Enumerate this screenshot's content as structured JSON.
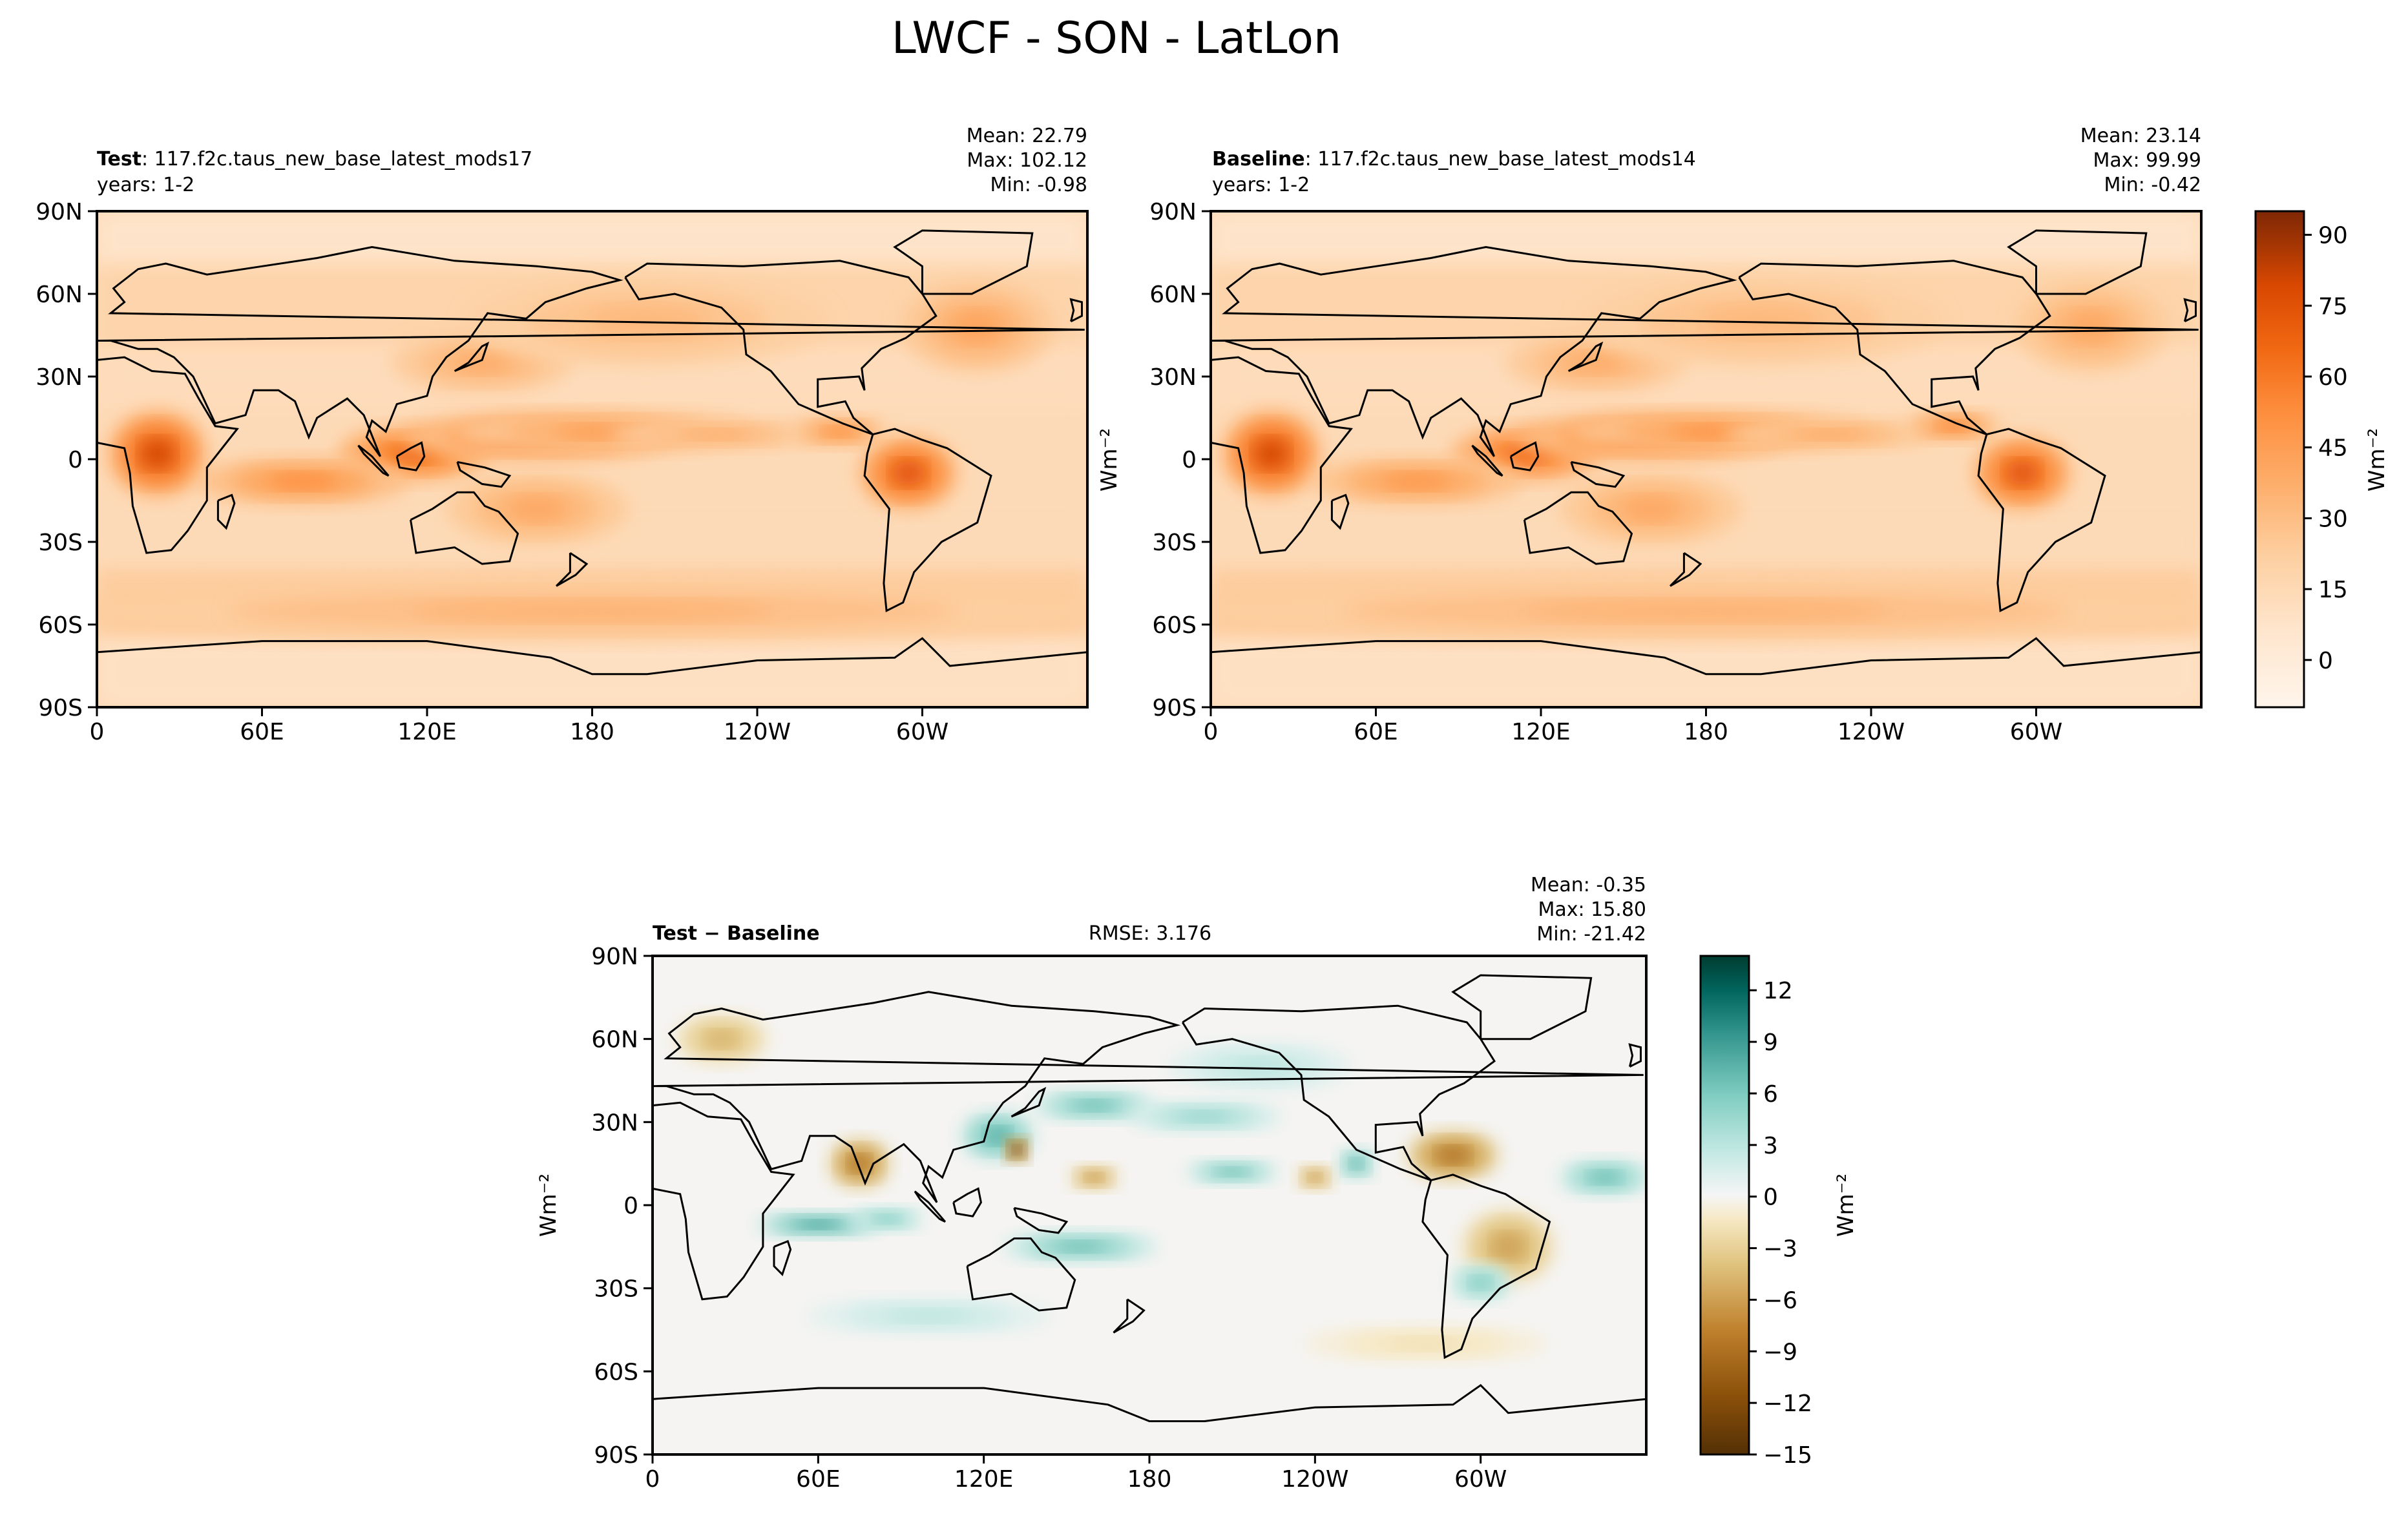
{
  "figure_title": "LWCF - SON - LatLon",
  "chart_data": [
    {
      "type": "heatmap",
      "panel": "test",
      "title_bold": "Test",
      "title_rest": ": 117.f2c.taus_new_base_latest_mods17",
      "subtitle": "years: 1-2",
      "stats": [
        "Mean: 22.79",
        "Max: 102.12",
        "Min: -0.98"
      ],
      "x_ticks": [
        "0",
        "60E",
        "120E",
        "180",
        "120W",
        "60W"
      ],
      "y_ticks": [
        "90N",
        "60N",
        "30N",
        "0",
        "30S",
        "60S",
        "90S"
      ],
      "xlim": [
        0,
        360
      ],
      "ylim": [
        -90,
        90
      ],
      "cmap": "Oranges",
      "blobs": [
        {
          "lon": 22,
          "lat": 2,
          "rx": 16,
          "ry": 14,
          "v": 80
        },
        {
          "lon": 115,
          "lat": 2,
          "rx": 25,
          "ry": 9,
          "v": 68
        },
        {
          "lon": 160,
          "lat": 8,
          "rx": 45,
          "ry": 8,
          "v": 58
        },
        {
          "lon": 185,
          "lat": 10,
          "rx": 50,
          "ry": 7,
          "v": 45
        },
        {
          "lon": 225,
          "lat": 9,
          "rx": 35,
          "ry": 5,
          "v": 38
        },
        {
          "lon": 295,
          "lat": -5,
          "rx": 16,
          "ry": 12,
          "v": 75
        },
        {
          "lon": 270,
          "lat": 10,
          "rx": 15,
          "ry": 5,
          "v": 52
        },
        {
          "lon": 75,
          "lat": -8,
          "rx": 35,
          "ry": 8,
          "v": 52
        },
        {
          "lon": 140,
          "lat": 35,
          "rx": 30,
          "ry": 10,
          "v": 38
        },
        {
          "lon": 320,
          "lat": 48,
          "rx": 25,
          "ry": 15,
          "v": 42
        },
        {
          "lon": 200,
          "lat": 50,
          "rx": 60,
          "ry": 15,
          "v": 32
        },
        {
          "lon": 180,
          "lat": -55,
          "rx": 180,
          "ry": 10,
          "v": 35
        },
        {
          "lon": 160,
          "lat": -18,
          "rx": 30,
          "ry": 12,
          "v": 40
        }
      ],
      "background": 14
    },
    {
      "type": "heatmap",
      "panel": "baseline",
      "title_bold": "Baseline",
      "title_rest": ": 117.f2c.taus_new_base_latest_mods14",
      "subtitle": "years: 1-2",
      "stats": [
        "Mean: 23.14",
        "Max: 99.99",
        "Min: -0.42"
      ],
      "x_ticks": [
        "0",
        "60E",
        "120E",
        "180",
        "120W",
        "60W"
      ],
      "y_ticks": [
        "90N",
        "60N",
        "30N",
        "0",
        "30S",
        "60S",
        "90S"
      ],
      "xlim": [
        0,
        360
      ],
      "ylim": [
        -90,
        90
      ],
      "cmap": "Oranges",
      "ylabel": "Wm⁻²",
      "blobs": [
        {
          "lon": 22,
          "lat": 2,
          "rx": 16,
          "ry": 14,
          "v": 80
        },
        {
          "lon": 115,
          "lat": 2,
          "rx": 25,
          "ry": 9,
          "v": 66
        },
        {
          "lon": 160,
          "lat": 8,
          "rx": 45,
          "ry": 8,
          "v": 60
        },
        {
          "lon": 185,
          "lat": 10,
          "rx": 50,
          "ry": 7,
          "v": 50
        },
        {
          "lon": 225,
          "lat": 9,
          "rx": 35,
          "ry": 5,
          "v": 40
        },
        {
          "lon": 295,
          "lat": -5,
          "rx": 16,
          "ry": 12,
          "v": 75
        },
        {
          "lon": 270,
          "lat": 12,
          "rx": 15,
          "ry": 5,
          "v": 55
        },
        {
          "lon": 75,
          "lat": -8,
          "rx": 35,
          "ry": 8,
          "v": 48
        },
        {
          "lon": 140,
          "lat": 35,
          "rx": 30,
          "ry": 10,
          "v": 38
        },
        {
          "lon": 320,
          "lat": 48,
          "rx": 25,
          "ry": 15,
          "v": 40
        },
        {
          "lon": 200,
          "lat": 50,
          "rx": 60,
          "ry": 15,
          "v": 32
        },
        {
          "lon": 180,
          "lat": -55,
          "rx": 180,
          "ry": 10,
          "v": 35
        },
        {
          "lon": 160,
          "lat": -18,
          "rx": 30,
          "ry": 12,
          "v": 40
        }
      ],
      "background": 14,
      "colorbar": {
        "label": "Wm⁻²",
        "ticks": [
          "0",
          "15",
          "30",
          "45",
          "60",
          "75",
          "90"
        ],
        "range": [
          -10,
          95
        ]
      }
    },
    {
      "type": "heatmap",
      "panel": "diff",
      "title_bold": "Test − Baseline",
      "rmse": "RMSE: 3.176",
      "stats": [
        "Mean: -0.35",
        "Max: 15.80",
        "Min: -21.42"
      ],
      "x_ticks": [
        "0",
        "60E",
        "120E",
        "180",
        "120W",
        "60W"
      ],
      "y_ticks": [
        "90N",
        "60N",
        "30N",
        "0",
        "30S",
        "60S",
        "90S"
      ],
      "xlim": [
        0,
        360
      ],
      "ylim": [
        -90,
        90
      ],
      "cmap": "BrBG",
      "ylabel": "Wm⁻²",
      "blobs": [
        {
          "lon": 75,
          "lat": 15,
          "rx": 10,
          "ry": 8,
          "v": -9
        },
        {
          "lon": 125,
          "lat": 25,
          "rx": 12,
          "ry": 8,
          "v": 8
        },
        {
          "lon": 132,
          "lat": 20,
          "rx": 4,
          "ry": 4,
          "v": -15
        },
        {
          "lon": 160,
          "lat": 36,
          "rx": 20,
          "ry": 5,
          "v": 7
        },
        {
          "lon": 200,
          "lat": 32,
          "rx": 25,
          "ry": 5,
          "v": 5
        },
        {
          "lon": 160,
          "lat": 10,
          "rx": 8,
          "ry": 4,
          "v": -7
        },
        {
          "lon": 210,
          "lat": 12,
          "rx": 15,
          "ry": 4,
          "v": 7
        },
        {
          "lon": 240,
          "lat": 10,
          "rx": 6,
          "ry": 4,
          "v": -7
        },
        {
          "lon": 255,
          "lat": 15,
          "rx": 6,
          "ry": 5,
          "v": 8
        },
        {
          "lon": 290,
          "lat": 18,
          "rx": 15,
          "ry": 8,
          "v": -9
        },
        {
          "lon": 345,
          "lat": 10,
          "rx": 15,
          "ry": 6,
          "v": 7
        },
        {
          "lon": 60,
          "lat": -7,
          "rx": 20,
          "ry": 4,
          "v": 9
        },
        {
          "lon": 85,
          "lat": -5,
          "rx": 12,
          "ry": 4,
          "v": 6
        },
        {
          "lon": 155,
          "lat": -15,
          "rx": 25,
          "ry": 5,
          "v": 7
        },
        {
          "lon": 310,
          "lat": -15,
          "rx": 15,
          "ry": 12,
          "v": -6
        },
        {
          "lon": 300,
          "lat": -28,
          "rx": 10,
          "ry": 6,
          "v": 6
        },
        {
          "lon": 25,
          "lat": 60,
          "rx": 15,
          "ry": 8,
          "v": -5
        },
        {
          "lon": 220,
          "lat": 50,
          "rx": 30,
          "ry": 8,
          "v": 3
        },
        {
          "lon": 100,
          "lat": -40,
          "rx": 40,
          "ry": 6,
          "v": 3
        },
        {
          "lon": 280,
          "lat": -50,
          "rx": 40,
          "ry": 6,
          "v": -2
        }
      ],
      "background": 0,
      "colorbar": {
        "label": "Wm⁻²",
        "ticks": [
          "12",
          "9",
          "6",
          "3",
          "0",
          "−3",
          "−6",
          "−9",
          "−12",
          "−15"
        ],
        "range": [
          -15,
          14
        ]
      }
    }
  ]
}
